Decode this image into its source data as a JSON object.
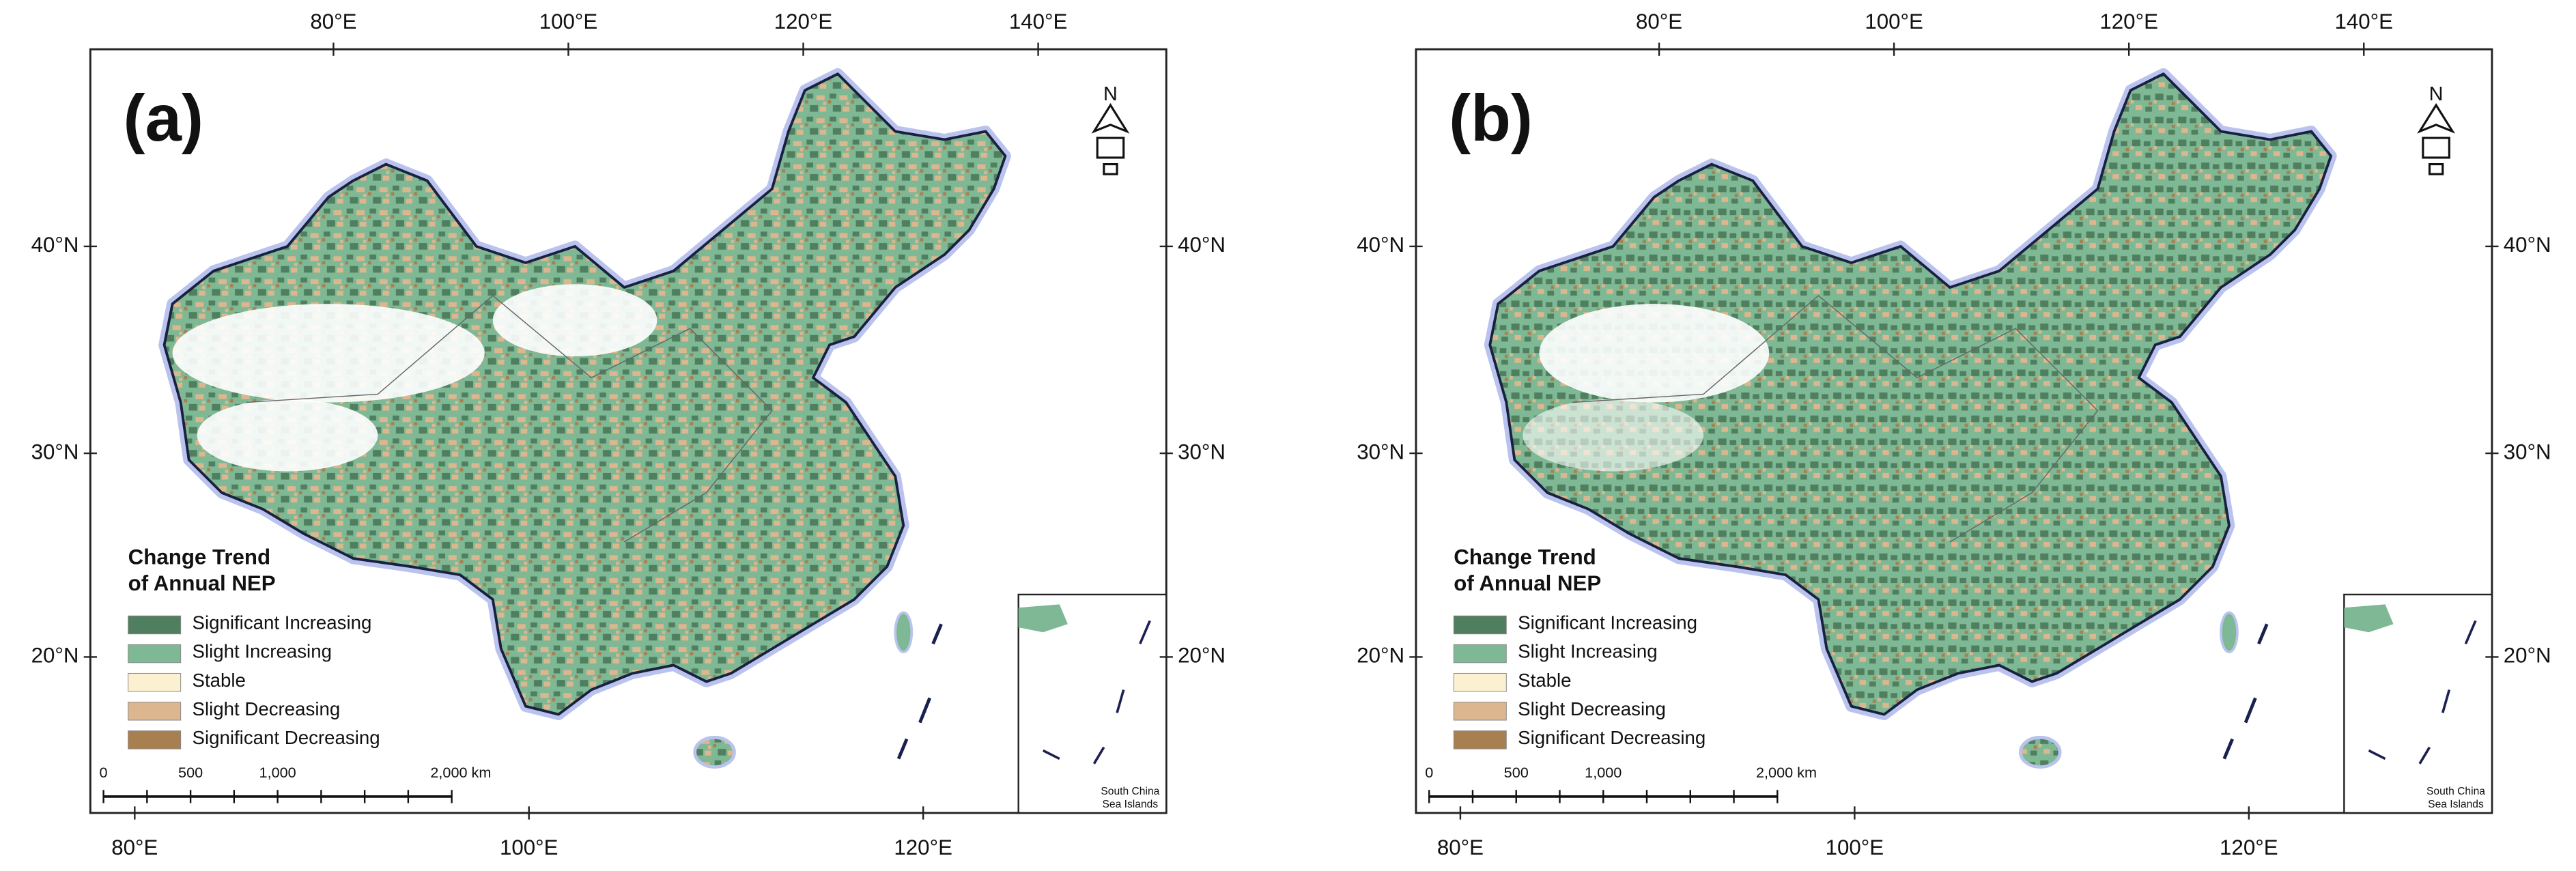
{
  "panels": [
    {
      "label": "(a)"
    },
    {
      "label": "(b)"
    }
  ],
  "legend_title": [
    "Change Trend",
    "of Annual NEP"
  ],
  "legend": [
    {
      "name": "Significant Increasing",
      "color": "#4f7f5e"
    },
    {
      "name": "Slight Increasing",
      "color": "#7fb894"
    },
    {
      "name": "Stable",
      "color": "#fbf0d0"
    },
    {
      "name": "Slight Decreasing",
      "color": "#dbb68e"
    },
    {
      "name": "Significant Decreasing",
      "color": "#a8804f"
    }
  ],
  "lon_ticks_top": [
    "80°E",
    "100°E",
    "120°E",
    "140°E"
  ],
  "lon_ticks_bottom": [
    "80°E",
    "100°E",
    "120°E"
  ],
  "lat_ticks": [
    "40°N",
    "30°N",
    "20°N"
  ],
  "scale_labels": [
    "0",
    "500",
    "1,000",
    "2,000 km"
  ],
  "north": "N",
  "inset_label": [
    "South China",
    "Sea Islands"
  ]
}
